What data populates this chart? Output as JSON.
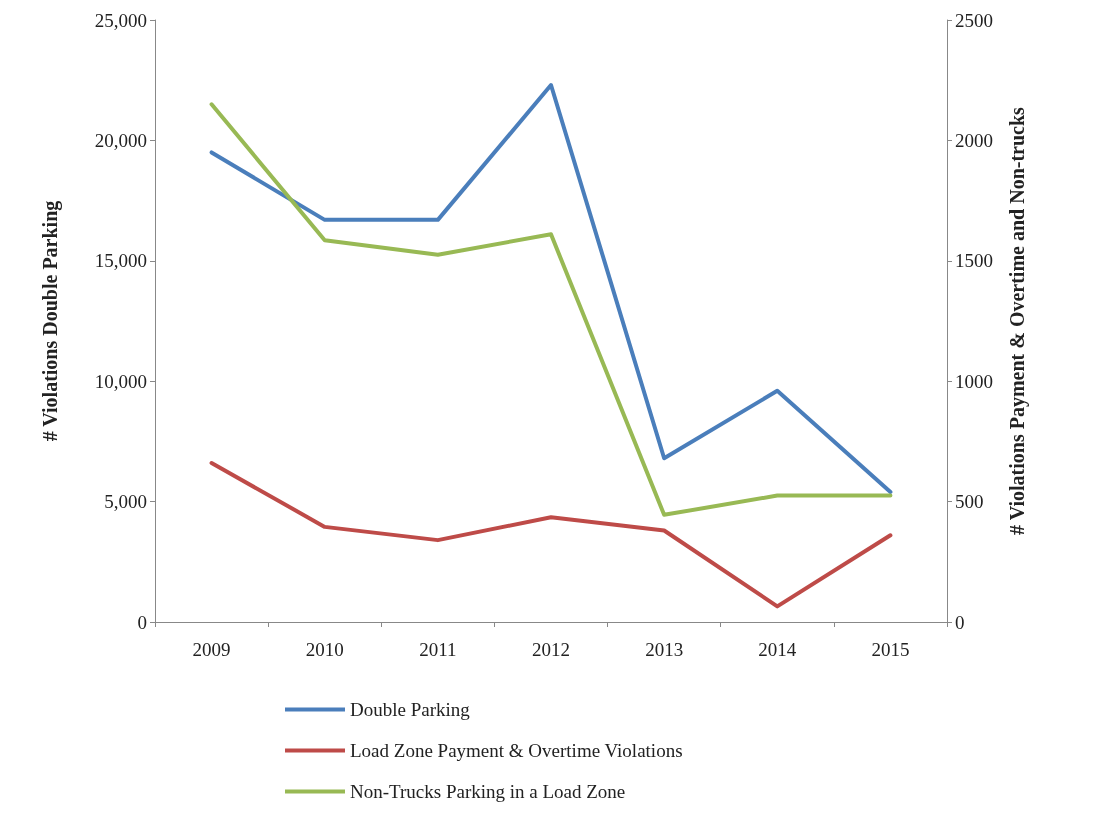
{
  "chart_data": {
    "type": "line",
    "ylabel": "# Violations Double Parking",
    "y2label": "# Violations Payment & Overtime and Non-trucks",
    "categories": [
      "2009",
      "2010",
      "2011",
      "2012",
      "2013",
      "2014",
      "2015"
    ],
    "series": [
      {
        "name": "Double Parking",
        "color": "#4a7ebb",
        "values": [
          19500,
          16700,
          16700,
          22300,
          6800,
          9600,
          5400
        ]
      },
      {
        "name": "Load Zone Payment & Overtime Violations",
        "color": "#be4b48",
        "axis": "y2",
        "values": [
          660,
          395,
          340,
          435,
          380,
          65,
          360
        ]
      },
      {
        "name": "Non-Trucks Parking in a Load Zone",
        "color": "#98b954",
        "axis": "y2",
        "values": [
          2150,
          1585,
          1525,
          1610,
          445,
          525,
          525
        ]
      }
    ],
    "ylim": [
      0,
      25000
    ],
    "yticks": [
      0,
      {
        "value": 5000,
        "label": "5,000"
      },
      {
        "value": 10000,
        "label": "10,000"
      },
      {
        "value": 15000,
        "label": "15,000"
      },
      {
        "value": 20000,
        "label": "20,000"
      },
      {
        "value": 25000,
        "label": "25,000"
      }
    ],
    "y2lim": [
      0,
      2500
    ],
    "y2ticks": [
      0,
      500,
      1000,
      1500,
      2000,
      2500
    ],
    "grid": false,
    "legend": "bottom",
    "marker": "none",
    "line_style": "solid"
  }
}
